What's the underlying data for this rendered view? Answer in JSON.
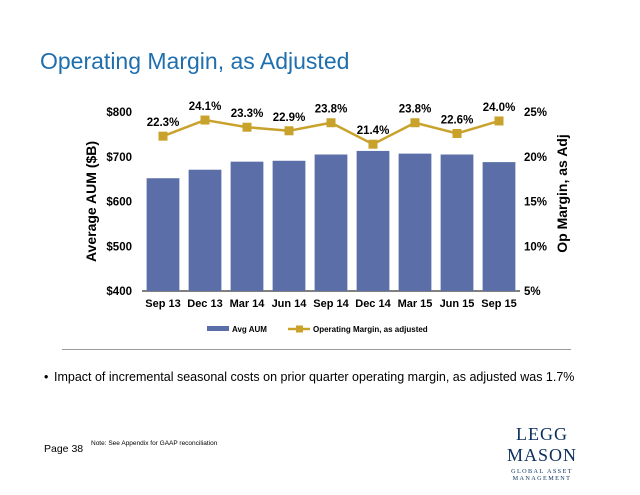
{
  "page": {
    "title": "Operating Margin, as Adjusted",
    "bullet": "Impact of incremental seasonal costs on prior quarter operating margin, as adjusted was 1.7%",
    "page_number": "Page 38",
    "note": "Note: See Appendix for GAAP reconciliation",
    "logo_main": "Legg Mason",
    "logo_sub": "Global Asset Management",
    "bullet_symbol": "•"
  },
  "colors": {
    "title": "#1f6fae",
    "bar": "#5b6ea8",
    "line": "#c9a22c",
    "logo": "#0b2e5c"
  },
  "chart_data": {
    "type": "bar",
    "categories": [
      "Sep 13",
      "Dec 13",
      "Mar 14",
      "Jun 14",
      "Sep 14",
      "Dec 14",
      "Mar 15",
      "Jun 15",
      "Sep 15"
    ],
    "series": [
      {
        "name": "Avg AUM",
        "type": "bar",
        "axis": "left",
        "values": [
          652,
          671,
          689,
          691,
          705,
          713,
          707,
          705,
          688
        ]
      },
      {
        "name": "Operating Margin, as adjusted",
        "type": "line",
        "axis": "right",
        "values": [
          22.3,
          24.1,
          23.3,
          22.9,
          23.8,
          21.4,
          23.8,
          22.6,
          24.0
        ],
        "labels": [
          "22.3%",
          "24.1%",
          "23.3%",
          "22.9%",
          "23.8%",
          "21.4%",
          "23.8%",
          "22.6%",
          "24.0%"
        ]
      }
    ],
    "ylabel": "Average AUM ($B)",
    "ylabel_right": "Op Margin, as Adj",
    "ylim": [
      400,
      800
    ],
    "ylim_right": [
      5,
      25
    ],
    "yticks": [
      "$400",
      "$500",
      "$600",
      "$700",
      "$800"
    ],
    "yticks_right": [
      "5%",
      "10%",
      "15%",
      "20%",
      "25%"
    ],
    "grid": false,
    "legend": "bottom"
  }
}
